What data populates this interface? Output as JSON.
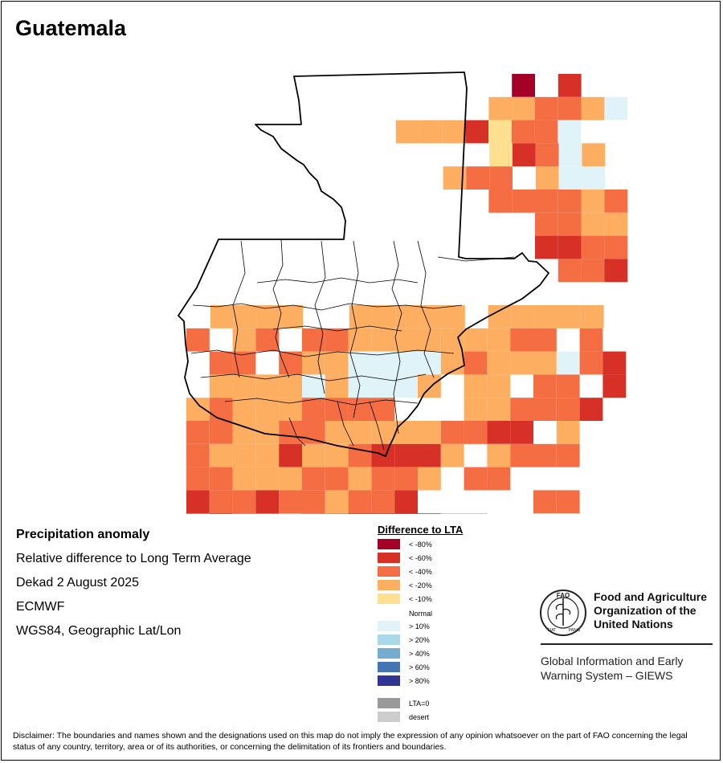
{
  "map": {
    "title": "Guatemala",
    "info": {
      "variable": "Precipitation anomaly",
      "description": "Relative difference to Long Term Average",
      "period": "Dekad 2 August 2025",
      "source": "ECMWF",
      "projection": "WGS84, Geographic Lat/Lon"
    },
    "legend": {
      "title": "Difference to LTA",
      "classes": [
        {
          "label": "< -80%",
          "color": "#a50026"
        },
        {
          "label": "< -60%",
          "color": "#d73027"
        },
        {
          "label": "< -40%",
          "color": "#f46d43"
        },
        {
          "label": "< -20%",
          "color": "#fdae61"
        },
        {
          "label": "< -10%",
          "color": "#fee090"
        },
        {
          "label": "Normal",
          "color": "#ffffff"
        },
        {
          "label": "> 10%",
          "color": "#e0f3f8"
        },
        {
          "label": "> 20%",
          "color": "#abd9e9"
        },
        {
          "label": "> 40%",
          "color": "#74add1"
        },
        {
          "label": "> 60%",
          "color": "#4575b4"
        },
        {
          "label": "> 80%",
          "color": "#313695"
        },
        {
          "label": "LTA=0",
          "color": "#999999"
        },
        {
          "label": "desert",
          "color": "#cccccc"
        }
      ]
    },
    "grid_codes": [
      "0000000009N800",
      "00000000667721",
      "00000066645731",
      "00000000N54312",
      "0000000673N211",
      "00000000773323",
      "00000000NN3322",
      "00000000NN4433",
      "00000000NNN334",
      "00000000000000",
      "2222NN22222N22222",
      "3023033222222233N3",
      "N330322111123222134",
      "N2222121112N22N33N4",
      "232223333000223334N",
      "332233222223344N2N",
      "322242234442N2333",
      "33222332332N3300",
      "4734332334NNNNN33N",
      "3433277444422000",
      "6632322224N3333",
      "N22N62223238",
      "322343N322",
      "33NN3N443"
    ]
  },
  "org": {
    "logo_text": "FAO",
    "logo_ring_left": "FIAT",
    "logo_ring_right": "PANIS",
    "name": "Food and Agriculture Organization of the United Nations",
    "program": "Global Information and Early Warning System – GIEWS"
  },
  "disclaimer": "Disclaimer: The boundaries and names shown and the designations used on this map do not imply the expression of any opinion whatsoever on the part of FAO concerning the legal status of any country, territory, area or of its authorities, or concerning the delimitation of its frontiers and boundaries."
}
